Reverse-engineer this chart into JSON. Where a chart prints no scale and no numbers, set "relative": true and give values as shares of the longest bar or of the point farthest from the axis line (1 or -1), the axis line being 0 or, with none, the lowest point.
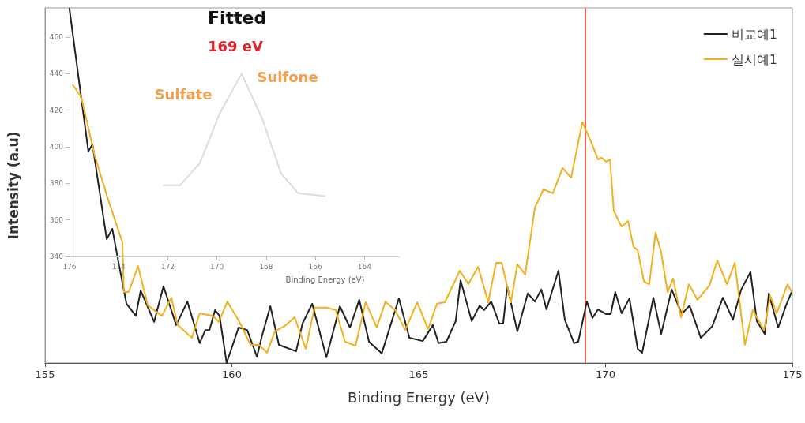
{
  "chart_data": [
    {
      "type": "line",
      "xlabel": "Binding Energy (eV)",
      "ylabel": "Intensity (a.u)",
      "relative": true,
      "xlim": [
        155,
        175
      ],
      "xticks": [
        155,
        160,
        165,
        170,
        175
      ],
      "legend": "top right",
      "grid": false,
      "ref_lines": [
        {
          "axis": "x",
          "value": 169.45,
          "color": "#f06a5e"
        }
      ],
      "series": [
        {
          "name": "비교예1",
          "color": "#222222",
          "x": [
            155.65,
            156.16,
            156.27,
            156.65,
            156.8,
            156.97,
            157.18,
            157.43,
            157.56,
            157.92,
            158.17,
            158.51,
            158.81,
            159.14,
            159.29,
            159.4,
            159.55,
            159.67,
            159.86,
            160.18,
            160.41,
            160.67,
            160.81,
            161.03,
            161.26,
            161.72,
            161.89,
            162.15,
            162.53,
            162.89,
            163.16,
            163.41,
            163.67,
            164.01,
            164.47,
            164.75,
            165.11,
            165.38,
            165.53,
            165.74,
            165.99,
            166.12,
            166.42,
            166.63,
            166.75,
            166.94,
            167.16,
            167.26,
            167.37,
            167.64,
            167.92,
            168.11,
            168.28,
            168.42,
            168.74,
            168.91,
            169.16,
            169.27,
            169.5,
            169.65,
            169.8,
            170.01,
            170.14,
            170.26,
            170.43,
            170.64,
            170.86,
            170.98,
            171.28,
            171.49,
            171.77,
            172.04,
            172.25,
            172.55,
            172.86,
            173.14,
            173.41,
            173.63,
            173.88,
            174.05,
            174.26,
            174.37,
            174.62,
            174.83,
            174.98
          ],
          "values": [
            1.0,
            0.596,
            0.616,
            0.349,
            0.378,
            0.282,
            0.167,
            0.133,
            0.204,
            0.116,
            0.216,
            0.107,
            0.173,
            0.056,
            0.093,
            0.093,
            0.149,
            0.133,
            0.0,
            0.1,
            0.093,
            0.018,
            0.078,
            0.16,
            0.051,
            0.033,
            0.111,
            0.167,
            0.016,
            0.16,
            0.1,
            0.178,
            0.06,
            0.027,
            0.182,
            0.071,
            0.062,
            0.107,
            0.056,
            0.06,
            0.118,
            0.233,
            0.118,
            0.162,
            0.149,
            0.173,
            0.111,
            0.111,
            0.216,
            0.089,
            0.196,
            0.173,
            0.207,
            0.151,
            0.26,
            0.122,
            0.056,
            0.06,
            0.173,
            0.127,
            0.151,
            0.138,
            0.138,
            0.2,
            0.14,
            0.182,
            0.04,
            0.029,
            0.184,
            0.082,
            0.207,
            0.138,
            0.162,
            0.071,
            0.104,
            0.184,
            0.122,
            0.207,
            0.256,
            0.118,
            0.082,
            0.196,
            0.1,
            0.162,
            0.2
          ]
        },
        {
          "name": "실시예1",
          "color": "#f2b01e",
          "x": [
            155.74,
            155.97,
            156.33,
            156.69,
            157.07,
            157.11,
            157.24,
            157.49,
            157.75,
            158.13,
            158.38,
            158.55,
            158.93,
            159.14,
            159.5,
            159.65,
            159.88,
            160.2,
            160.5,
            160.73,
            160.94,
            161.15,
            161.41,
            161.68,
            161.98,
            162.21,
            162.53,
            162.78,
            163.03,
            163.31,
            163.58,
            163.88,
            164.11,
            164.37,
            164.64,
            164.96,
            165.25,
            165.49,
            165.7,
            166.1,
            166.33,
            166.59,
            166.86,
            167.07,
            167.22,
            167.47,
            167.64,
            167.85,
            168.11,
            168.34,
            168.59,
            168.85,
            169.08,
            169.38,
            169.59,
            169.8,
            169.9,
            170.01,
            170.12,
            170.22,
            170.43,
            170.6,
            170.75,
            170.86,
            171.03,
            171.17,
            171.34,
            171.49,
            171.66,
            171.81,
            172.02,
            172.23,
            172.46,
            172.78,
            172.99,
            173.25,
            173.46,
            173.73,
            173.94,
            174.24,
            174.41,
            174.58,
            174.87,
            174.98
          ],
          "values": [
            0.784,
            0.749,
            0.584,
            0.46,
            0.34,
            0.2,
            0.2,
            0.273,
            0.162,
            0.133,
            0.184,
            0.107,
            0.071,
            0.14,
            0.133,
            0.116,
            0.173,
            0.116,
            0.051,
            0.051,
            0.029,
            0.089,
            0.104,
            0.129,
            0.04,
            0.156,
            0.156,
            0.149,
            0.06,
            0.049,
            0.171,
            0.1,
            0.173,
            0.149,
            0.093,
            0.171,
            0.096,
            0.167,
            0.171,
            0.26,
            0.222,
            0.271,
            0.171,
            0.282,
            0.282,
            0.171,
            0.278,
            0.249,
            0.438,
            0.489,
            0.478,
            0.549,
            0.522,
            0.678,
            0.629,
            0.573,
            0.578,
            0.567,
            0.573,
            0.429,
            0.384,
            0.4,
            0.327,
            0.318,
            0.229,
            0.222,
            0.367,
            0.311,
            0.2,
            0.238,
            0.129,
            0.222,
            0.178,
            0.218,
            0.289,
            0.222,
            0.282,
            0.051,
            0.149,
            0.093,
            0.189,
            0.14,
            0.222,
            0.2
          ]
        }
      ]
    },
    {
      "type": "line",
      "title": "Fitted",
      "xlabel": "Binding Energy (eV)",
      "xlim": [
        176,
        162.6
      ],
      "xticks": [
        176,
        174,
        172,
        170,
        168,
        166,
        164
      ],
      "ylim": [
        340,
        476
      ],
      "yticks": [
        340,
        360,
        380,
        400,
        420,
        440,
        460
      ],
      "grid": false,
      "annotations": [
        "169 eV",
        "Sulfate",
        "Sulfone"
      ],
      "series": [
        {
          "color": "#dcdcdc",
          "x": [
            172.2,
            171.5,
            170.7,
            169.9,
            169.0,
            168.15,
            167.4,
            166.7,
            165.6
          ],
          "values": [
            379,
            379,
            391,
            418,
            440,
            415,
            385.6,
            374.6,
            373
          ]
        }
      ]
    }
  ]
}
